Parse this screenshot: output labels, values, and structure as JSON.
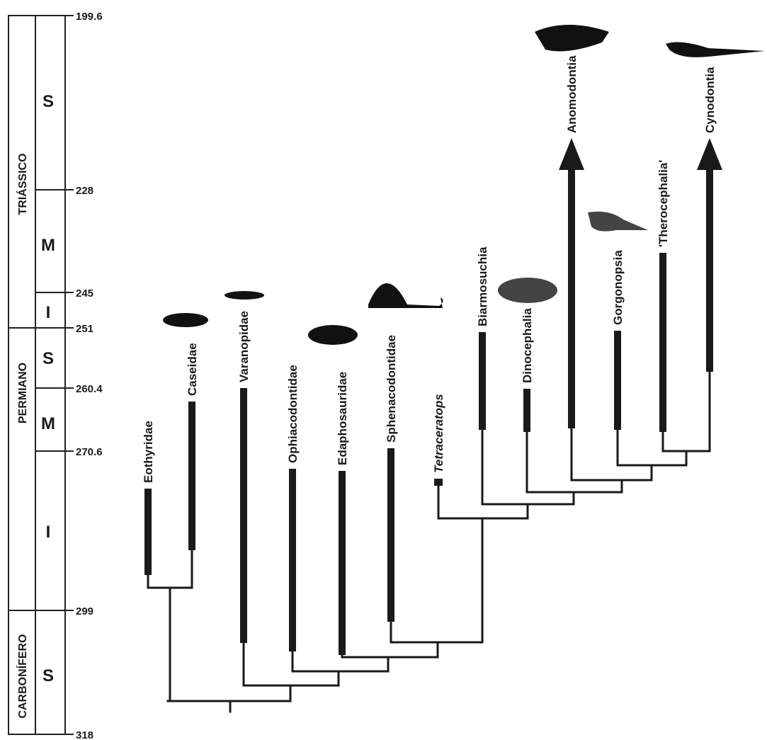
{
  "timescale": {
    "periods": [
      "TRIÁSSICO",
      "PERMIANO",
      "CARBONÍFERO"
    ],
    "epochs": [
      "S",
      "M",
      "I",
      "S",
      "M",
      "I",
      "S"
    ],
    "ages": [
      "199.6",
      "228",
      "245",
      "251",
      "260.4",
      "270.6",
      "299",
      "318"
    ]
  },
  "taxa": [
    {
      "name": "Eothyridae"
    },
    {
      "name": "Caseidae"
    },
    {
      "name": "Varanopidae"
    },
    {
      "name": "Ophiacodontidae"
    },
    {
      "name": "Edaphosauridae"
    },
    {
      "name": "Sphenacodontidae"
    },
    {
      "name": "Tetraceratops"
    },
    {
      "name": "Biarmosuchia"
    },
    {
      "name": "Dinocephalia"
    },
    {
      "name": "Anomodontia"
    },
    {
      "name": "Gorgonopsia"
    },
    {
      "name": "'Therocephalia'"
    },
    {
      "name": "Cynodontia"
    }
  ]
}
